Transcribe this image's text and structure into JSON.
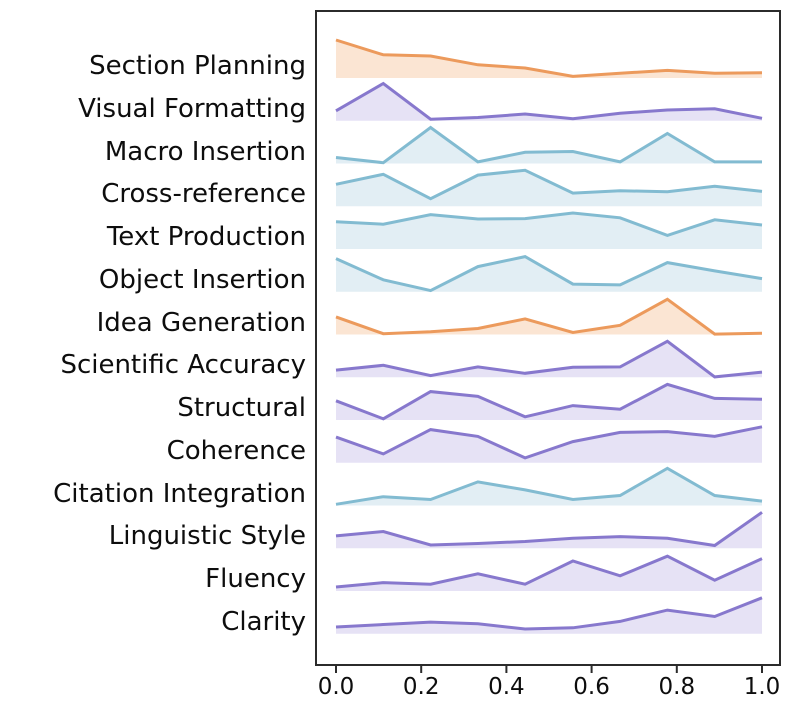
{
  "figure": {
    "background": "#ffffff",
    "frame_color": "#2b2b2b"
  },
  "palette": {
    "orange": {
      "line": "#EC9A5C",
      "fill": "#FBE5D3"
    },
    "teal": {
      "line": "#82BBD1",
      "fill": "#E2EEF4"
    },
    "purple": {
      "line": "#8778CD",
      "fill": "#E6E2F5"
    }
  },
  "chart_data": {
    "type": "area",
    "variant": "ridgeline",
    "title": "",
    "xlabel": "",
    "ylabel": "",
    "xlim": [
      0.0,
      1.0
    ],
    "grid": false,
    "legend": "none",
    "values_unit": "relative ridge height (fraction of row maximum)",
    "x": [
      0.0,
      0.111,
      0.222,
      0.333,
      0.444,
      0.556,
      0.667,
      0.778,
      0.889,
      1.0
    ],
    "xtick_labels": [
      "0.0",
      "0.2",
      "0.4",
      "0.6",
      "0.8",
      "1.0"
    ],
    "series": [
      {
        "label": "Section Planning",
        "color": "orange",
        "values": [
          0.95,
          0.58,
          0.55,
          0.33,
          0.25,
          0.04,
          0.12,
          0.19,
          0.12,
          0.13
        ]
      },
      {
        "label": "Visual Formatting",
        "color": "purple",
        "values": [
          0.25,
          0.93,
          0.04,
          0.08,
          0.17,
          0.05,
          0.19,
          0.27,
          0.3,
          0.06
        ]
      },
      {
        "label": "Macro Insertion",
        "color": "teal",
        "values": [
          0.15,
          0.02,
          0.9,
          0.04,
          0.28,
          0.3,
          0.04,
          0.75,
          0.04,
          0.04
        ]
      },
      {
        "label": "Cross-reference",
        "color": "teal",
        "values": [
          0.55,
          0.8,
          0.19,
          0.78,
          0.9,
          0.33,
          0.39,
          0.36,
          0.5,
          0.37
        ]
      },
      {
        "label": "Text Production",
        "color": "teal",
        "values": [
          0.68,
          0.62,
          0.86,
          0.75,
          0.76,
          0.9,
          0.78,
          0.34,
          0.73,
          0.6
        ]
      },
      {
        "label": "Object Insertion",
        "color": "teal",
        "values": [
          0.83,
          0.3,
          0.03,
          0.63,
          0.88,
          0.19,
          0.17,
          0.73,
          0.52,
          0.33
        ]
      },
      {
        "label": "Idea Generation",
        "color": "orange",
        "values": [
          0.44,
          0.02,
          0.07,
          0.15,
          0.39,
          0.05,
          0.23,
          0.88,
          0.01,
          0.03
        ]
      },
      {
        "label": "Scientific Accuracy",
        "color": "purple",
        "values": [
          0.18,
          0.3,
          0.04,
          0.26,
          0.1,
          0.25,
          0.26,
          0.9,
          0.01,
          0.13
        ]
      },
      {
        "label": "Structural",
        "color": "purple",
        "values": [
          0.48,
          0.03,
          0.71,
          0.59,
          0.08,
          0.36,
          0.27,
          0.89,
          0.54,
          0.52
        ]
      },
      {
        "label": "Coherence",
        "color": "purple",
        "values": [
          0.64,
          0.22,
          0.83,
          0.66,
          0.12,
          0.53,
          0.76,
          0.78,
          0.66,
          0.9
        ]
      },
      {
        "label": "Citation Integration",
        "color": "teal",
        "values": [
          0.03,
          0.22,
          0.15,
          0.59,
          0.39,
          0.15,
          0.25,
          0.93,
          0.25,
          0.11
        ]
      },
      {
        "label": "Linguistic Style",
        "color": "purple",
        "values": [
          0.31,
          0.42,
          0.08,
          0.12,
          0.17,
          0.25,
          0.29,
          0.25,
          0.07,
          0.9
        ]
      },
      {
        "label": "Fluency",
        "color": "purple",
        "values": [
          0.1,
          0.21,
          0.17,
          0.43,
          0.17,
          0.75,
          0.38,
          0.87,
          0.27,
          0.81
        ]
      },
      {
        "label": "Clarity",
        "color": "purple",
        "values": [
          0.17,
          0.23,
          0.29,
          0.25,
          0.12,
          0.15,
          0.31,
          0.59,
          0.43,
          0.9
        ]
      }
    ]
  }
}
